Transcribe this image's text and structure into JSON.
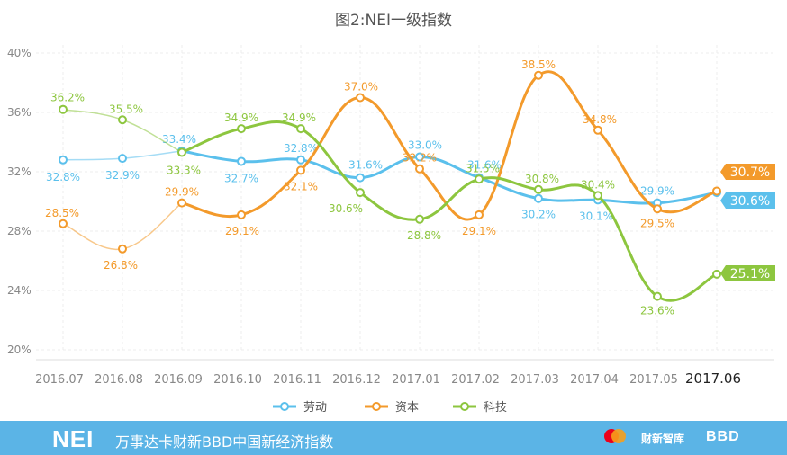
{
  "chart_data": {
    "type": "line",
    "title": "图2:NEI一级指数",
    "categories": [
      "2016.07",
      "2016.08",
      "2016.09",
      "2016.10",
      "2016.11",
      "2016.12",
      "2017.01",
      "2017.02",
      "2017.03",
      "2017.04",
      "2017.05",
      "2017.06"
    ],
    "ylim": [
      20,
      40
    ],
    "yticks": [
      20,
      24,
      28,
      32,
      36,
      40
    ],
    "ytick_labels": [
      "20%",
      "24%",
      "28%",
      "32%",
      "36%",
      "40%"
    ],
    "grid": true,
    "legend": "bottom",
    "series": [
      {
        "name": "劳动",
        "color": "#5bc0ec",
        "values": [
          32.8,
          32.9,
          33.4,
          32.7,
          32.8,
          31.6,
          33.0,
          31.6,
          30.2,
          30.1,
          29.9,
          30.6
        ],
        "labels": [
          "32.8%",
          "32.9%",
          "33.4%",
          "32.7%",
          "32.8%",
          "31.6%",
          "33.0%",
          "31.6%",
          "30.2%",
          "30.1%",
          "29.9%",
          "30.6%"
        ]
      },
      {
        "name": "资本",
        "color": "#f39a2b",
        "values": [
          28.5,
          26.8,
          29.9,
          29.1,
          32.1,
          37.0,
          32.2,
          29.1,
          38.5,
          34.8,
          29.5,
          30.7
        ],
        "labels": [
          "28.5%",
          "26.8%",
          "29.9%",
          "29.1%",
          "32.1%",
          "37.0%",
          "32.2%",
          "29.1%",
          "38.5%",
          "34.8%",
          "29.5%",
          "30.7%"
        ]
      },
      {
        "name": "科技",
        "color": "#8dc63f",
        "values": [
          36.2,
          35.5,
          33.3,
          34.9,
          34.9,
          30.6,
          28.8,
          31.5,
          30.8,
          30.4,
          23.6,
          25.1
        ],
        "labels": [
          "36.2%",
          "35.5%",
          "33.3%",
          "34.9%",
          "34.9%",
          "30.6%",
          "28.8%",
          "31.5%",
          "30.8%",
          "30.4%",
          "23.6%",
          "25.1%"
        ]
      }
    ]
  },
  "footer": {
    "brand": "NEI",
    "subtitle": "万事达卡财新BBD中国新经济指数",
    "logo_2": "财新智库",
    "logo_3": "BBD"
  }
}
